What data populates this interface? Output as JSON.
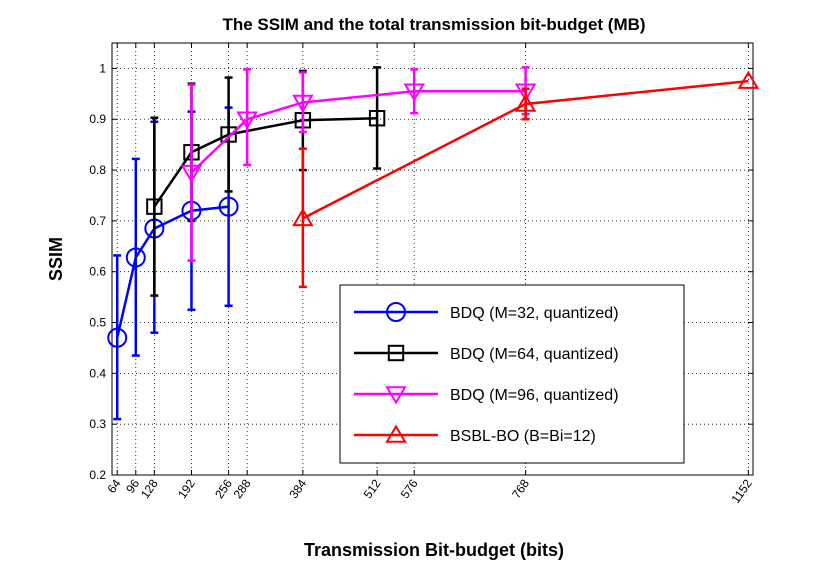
{
  "chart_data": {
    "type": "line",
    "title": "The SSIM and the total transmission bit-budget (MB)",
    "xlabel": "Transmission Bit-budget (bits)",
    "ylabel": "SSIM",
    "xlim": [
      55,
      1160
    ],
    "ylim": [
      0.2,
      1.05
    ],
    "xticks": [
      64,
      96,
      128,
      192,
      256,
      288,
      384,
      512,
      576,
      768,
      1152
    ],
    "yticks": [
      0.2,
      0.3,
      0.4,
      0.5,
      0.6,
      0.7,
      0.8,
      0.9,
      1
    ],
    "grid": true,
    "legend_position": "lower-right",
    "series": [
      {
        "name": "BDQ (M=32, quantized)",
        "color": "#0000ff",
        "marker": "circle",
        "x": [
          64,
          96,
          128,
          192,
          256
        ],
        "y": [
          0.47,
          0.628,
          0.685,
          0.72,
          0.728
        ],
        "err_low": [
          0.31,
          0.435,
          0.48,
          0.525,
          0.533
        ],
        "err_high": [
          0.632,
          0.822,
          0.895,
          0.915,
          0.923
        ]
      },
      {
        "name": "BDQ (M=64, quantized)",
        "color": "#000000",
        "marker": "square",
        "x": [
          128,
          192,
          256,
          384,
          512
        ],
        "y": [
          0.728,
          0.835,
          0.87,
          0.898,
          0.902
        ],
        "err_low": [
          0.553,
          0.7,
          0.758,
          0.8,
          0.803
        ],
        "err_high": [
          0.903,
          0.97,
          0.982,
          0.995,
          1.002
        ]
      },
      {
        "name": "BDQ (M=96, quantized)",
        "color": "#ff00ff",
        "marker": "triangle-down",
        "x": [
          192,
          288,
          384,
          576,
          768
        ],
        "y": [
          0.795,
          0.9,
          0.933,
          0.955,
          0.955
        ],
        "err_low": [
          0.622,
          0.81,
          0.875,
          0.912,
          0.91
        ],
        "err_high": [
          0.968,
          0.998,
          0.992,
          0.998,
          1.002
        ]
      },
      {
        "name": "BSBL-BO (B=Bi=12)",
        "color": "#ff0000",
        "marker": "triangle-up",
        "x": [
          384,
          768,
          1152
        ],
        "y": [
          0.705,
          0.93,
          0.975
        ],
        "err_low": [
          0.57,
          0.9,
          null
        ],
        "err_high": [
          0.842,
          0.96,
          null
        ]
      }
    ]
  }
}
